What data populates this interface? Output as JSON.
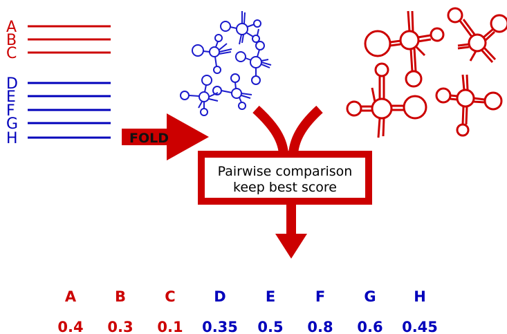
{
  "colors": {
    "red": "#cc0000",
    "blue": "#0000bb",
    "black": "#000000"
  },
  "sequences": {
    "red": [
      "A",
      "B",
      "C"
    ],
    "blue": [
      "D",
      "E",
      "F",
      "G",
      "H"
    ]
  },
  "fold_label": "FOLD",
  "box": {
    "line1": "Pairwise comparison",
    "line2": "keep best score"
  },
  "results": [
    {
      "label": "A",
      "score": "0.4",
      "group": "red"
    },
    {
      "label": "B",
      "score": "0.3",
      "group": "red"
    },
    {
      "label": "C",
      "score": "0.1",
      "group": "red"
    },
    {
      "label": "D",
      "score": "0.35",
      "group": "blue"
    },
    {
      "label": "E",
      "score": "0.5",
      "group": "blue"
    },
    {
      "label": "F",
      "score": "0.8",
      "group": "blue"
    },
    {
      "label": "G",
      "score": "0.6",
      "group": "blue"
    },
    {
      "label": "H",
      "score": "0.45",
      "group": "blue"
    }
  ]
}
